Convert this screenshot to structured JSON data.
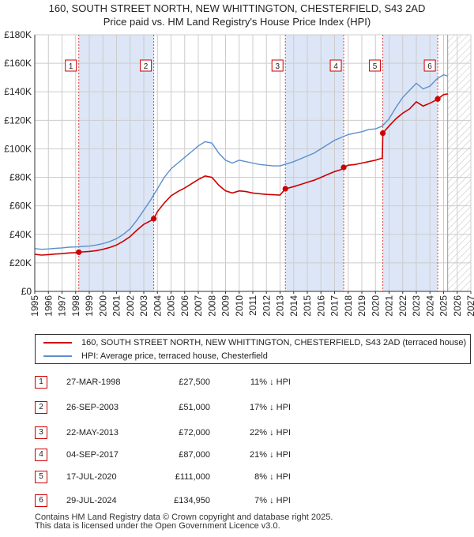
{
  "title_line1": "160, SOUTH STREET NORTH, NEW WHITTINGTON, CHESTERFIELD, S43 2AD",
  "title_line2": "Price paid vs. HM Land Registry's House Price Index (HPI)",
  "colors": {
    "property": "#cc0000",
    "hpi": "#5b8fd0",
    "shade": "#dde6f6",
    "grid": "#cccccc",
    "marker_border": "#cc0000"
  },
  "chart_data": {
    "type": "line",
    "title": "Price paid vs. HM Land Registry's House Price Index (HPI)",
    "xlabel": "",
    "ylabel": "",
    "xlim": [
      1995,
      2027
    ],
    "ylim": [
      0,
      180000
    ],
    "yticks": [
      0,
      20000,
      40000,
      60000,
      80000,
      100000,
      120000,
      140000,
      160000,
      180000
    ],
    "ytick_labels": [
      "£0",
      "£20K",
      "£40K",
      "£60K",
      "£80K",
      "£100K",
      "£120K",
      "£140K",
      "£160K",
      "£180K"
    ],
    "xticks": [
      "1995",
      "1996",
      "1997",
      "1998",
      "1999",
      "2000",
      "2001",
      "2002",
      "2003",
      "2004",
      "2005",
      "2006",
      "2007",
      "2008",
      "2009",
      "2010",
      "2011",
      "2012",
      "2013",
      "2014",
      "2015",
      "2016",
      "2017",
      "2018",
      "2019",
      "2020",
      "2021",
      "2022",
      "2023",
      "2024",
      "2025",
      "2026",
      "2027"
    ],
    "forecast_start": 2025.3,
    "shaded_periods": [
      [
        1998.23,
        2003.73
      ],
      [
        2013.39,
        2017.67
      ],
      [
        2020.54,
        2024.57
      ]
    ],
    "series": [
      {
        "name": "HPI: Average price, terraced house, Chesterfield",
        "x": [
          1995,
          1995.5,
          1996,
          1996.5,
          1997,
          1997.5,
          1998,
          1998.5,
          1999,
          1999.5,
          2000,
          2000.5,
          2001,
          2001.5,
          2002,
          2002.5,
          2003,
          2003.5,
          2004,
          2004.5,
          2005,
          2005.5,
          2006,
          2006.5,
          2007,
          2007.5,
          2008,
          2008.5,
          2009,
          2009.5,
          2010,
          2010.5,
          2011,
          2011.5,
          2012,
          2012.5,
          2013,
          2013.5,
          2014,
          2014.5,
          2015,
          2015.5,
          2016,
          2016.5,
          2017,
          2017.5,
          2018,
          2018.5,
          2019,
          2019.5,
          2020,
          2020.5,
          2021,
          2021.5,
          2022,
          2022.5,
          2023,
          2023.5,
          2024,
          2024.5,
          2025,
          2025.3
        ],
        "values": [
          30000,
          29500,
          29800,
          30200,
          30500,
          31000,
          31200,
          31500,
          31800,
          32500,
          33500,
          35000,
          37000,
          40000,
          44000,
          50000,
          57000,
          64000,
          72000,
          80000,
          86000,
          90000,
          94000,
          98000,
          102000,
          105000,
          104000,
          97000,
          92000,
          90000,
          92000,
          91000,
          90000,
          89000,
          88500,
          88000,
          88000,
          89500,
          91000,
          93000,
          95000,
          97000,
          100000,
          103000,
          106000,
          108000,
          110000,
          111000,
          112000,
          113500,
          114000,
          116000,
          121000,
          129000,
          136000,
          141000,
          146000,
          142000,
          144000,
          149000,
          152000,
          151000
        ]
      },
      {
        "name": "160, SOUTH STREET NORTH, NEW WHITTINGTON, CHESTERFIELD, S43 2AD (terraced house)",
        "x": [
          1995,
          1995.5,
          1996,
          1996.5,
          1997,
          1997.5,
          1998,
          1998.23,
          1998.5,
          1999,
          1999.5,
          2000,
          2000.5,
          2001,
          2001.5,
          2002,
          2002.5,
          2003,
          2003.5,
          2003.73,
          2004,
          2004.5,
          2005,
          2005.5,
          2006,
          2006.5,
          2007,
          2007.5,
          2008,
          2008.5,
          2009,
          2009.5,
          2010,
          2010.5,
          2011,
          2011.5,
          2012,
          2012.5,
          2013,
          2013.39,
          2013.5,
          2014,
          2014.5,
          2015,
          2015.5,
          2016,
          2016.5,
          2017,
          2017.5,
          2017.67,
          2018,
          2018.5,
          2019,
          2019.5,
          2020,
          2020.5,
          2020.54,
          2021,
          2021.5,
          2022,
          2022.5,
          2023,
          2023.5,
          2024,
          2024.5,
          2024.57,
          2025,
          2025.3
        ],
        "values": [
          26000,
          25500,
          25800,
          26200,
          26500,
          27000,
          27200,
          27500,
          27700,
          28000,
          28600,
          29500,
          30800,
          32500,
          35200,
          38500,
          43000,
          47000,
          49500,
          51000,
          56000,
          62000,
          67000,
          70000,
          72500,
          75500,
          78500,
          81000,
          80000,
          74500,
          70500,
          69000,
          70500,
          70000,
          69000,
          68500,
          68000,
          67800,
          67500,
          72000,
          72200,
          73500,
          75000,
          76500,
          78000,
          80000,
          82000,
          84000,
          85500,
          87000,
          88500,
          89000,
          90000,
          91000,
          92000,
          93500,
          111000,
          116000,
          121000,
          125000,
          128000,
          133000,
          130000,
          132000,
          134500,
          134950,
          138000,
          138500
        ]
      }
    ],
    "sales": [
      {
        "label": "1",
        "x": 1998.23,
        "value": 27500
      },
      {
        "label": "2",
        "x": 2003.73,
        "value": 51000
      },
      {
        "label": "3",
        "x": 2013.39,
        "value": 72000
      },
      {
        "label": "4",
        "x": 2017.67,
        "value": 87000
      },
      {
        "label": "5",
        "x": 2020.54,
        "value": 111000
      },
      {
        "label": "6",
        "x": 2024.57,
        "value": 134950
      }
    ]
  },
  "legend": {
    "property": "160, SOUTH STREET NORTH, NEW WHITTINGTON, CHESTERFIELD, S43 2AD (terraced house)",
    "hpi": "HPI: Average price, terraced house, Chesterfield"
  },
  "transactions": [
    {
      "num": "1",
      "date": "27-MAR-1998",
      "price": "£27,500",
      "hpi": "11% ↓ HPI"
    },
    {
      "num": "2",
      "date": "26-SEP-2003",
      "price": "£51,000",
      "hpi": "17% ↓ HPI"
    },
    {
      "num": "3",
      "date": "22-MAY-2013",
      "price": "£72,000",
      "hpi": "22% ↓ HPI"
    },
    {
      "num": "4",
      "date": "04-SEP-2017",
      "price": "£87,000",
      "hpi": "21% ↓ HPI"
    },
    {
      "num": "5",
      "date": "17-JUL-2020",
      "price": "£111,000",
      "hpi": "8% ↓ HPI"
    },
    {
      "num": "6",
      "date": "29-JUL-2024",
      "price": "£134,950",
      "hpi": "7% ↓ HPI"
    }
  ],
  "footer": {
    "line1": "Contains HM Land Registry data © Crown copyright and database right 2025.",
    "line2": "This data is licensed under the Open Government Licence v3.0."
  }
}
